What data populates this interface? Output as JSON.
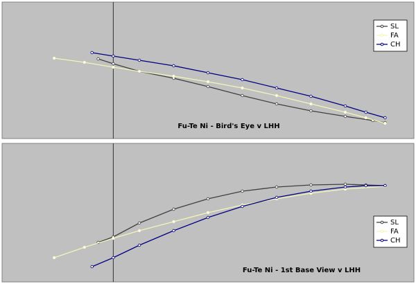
{
  "chart_data": [
    {
      "type": "line",
      "title": "Fu-Te Ni - Bird's Eye v LHH",
      "xlim": [
        0,
        600
      ],
      "ylim": [
        0,
        197
      ],
      "vline": 162,
      "legend": "upper right",
      "series": [
        {
          "name": "SL",
          "color": "#404040",
          "x": [
            140,
            162,
            200,
            250,
            300,
            350,
            400,
            450,
            500,
            540,
            558
          ],
          "values": [
            115,
            108,
            97,
            87,
            75,
            62,
            50,
            40,
            32,
            26,
            23
          ]
        },
        {
          "name": "FA",
          "color": "#f4f4b8",
          "x": [
            76,
            120,
            162,
            200,
            250,
            300,
            350,
            400,
            450,
            500,
            530,
            558
          ],
          "values": [
            116,
            110,
            103,
            97,
            90,
            82,
            73,
            62,
            50,
            38,
            30,
            22
          ]
        },
        {
          "name": "CH",
          "color": "#000080",
          "x": [
            131,
            162,
            200,
            250,
            300,
            350,
            400,
            450,
            500,
            530,
            558
          ],
          "values": [
            124,
            119,
            113,
            105,
            95,
            85,
            73,
            61,
            47,
            38,
            30
          ]
        }
      ]
    },
    {
      "type": "line",
      "title": "Fu-Te Ni - 1st Base View v LHH",
      "xlim": [
        0,
        600
      ],
      "ylim": [
        0,
        200
      ],
      "vline": 162,
      "legend": "lower right",
      "series": [
        {
          "name": "SL",
          "color": "#404040",
          "x": [
            140,
            162,
            200,
            250,
            300,
            350,
            400,
            450,
            500,
            530,
            558
          ],
          "values": [
            57,
            65,
            85,
            105,
            120,
            131,
            137,
            140,
            141,
            140,
            139
          ]
        },
        {
          "name": "FA",
          "color": "#f4f4b8",
          "x": [
            76,
            120,
            162,
            200,
            250,
            300,
            350,
            400,
            450,
            500,
            558
          ],
          "values": [
            35,
            50,
            63,
            74,
            87,
            100,
            111,
            120,
            128,
            134,
            138
          ]
        },
        {
          "name": "CH",
          "color": "#000080",
          "x": [
            131,
            162,
            200,
            250,
            300,
            350,
            400,
            450,
            500,
            530,
            558
          ],
          "values": [
            22,
            35,
            53,
            74,
            93,
            109,
            122,
            131,
            137,
            139,
            139
          ]
        }
      ]
    }
  ]
}
